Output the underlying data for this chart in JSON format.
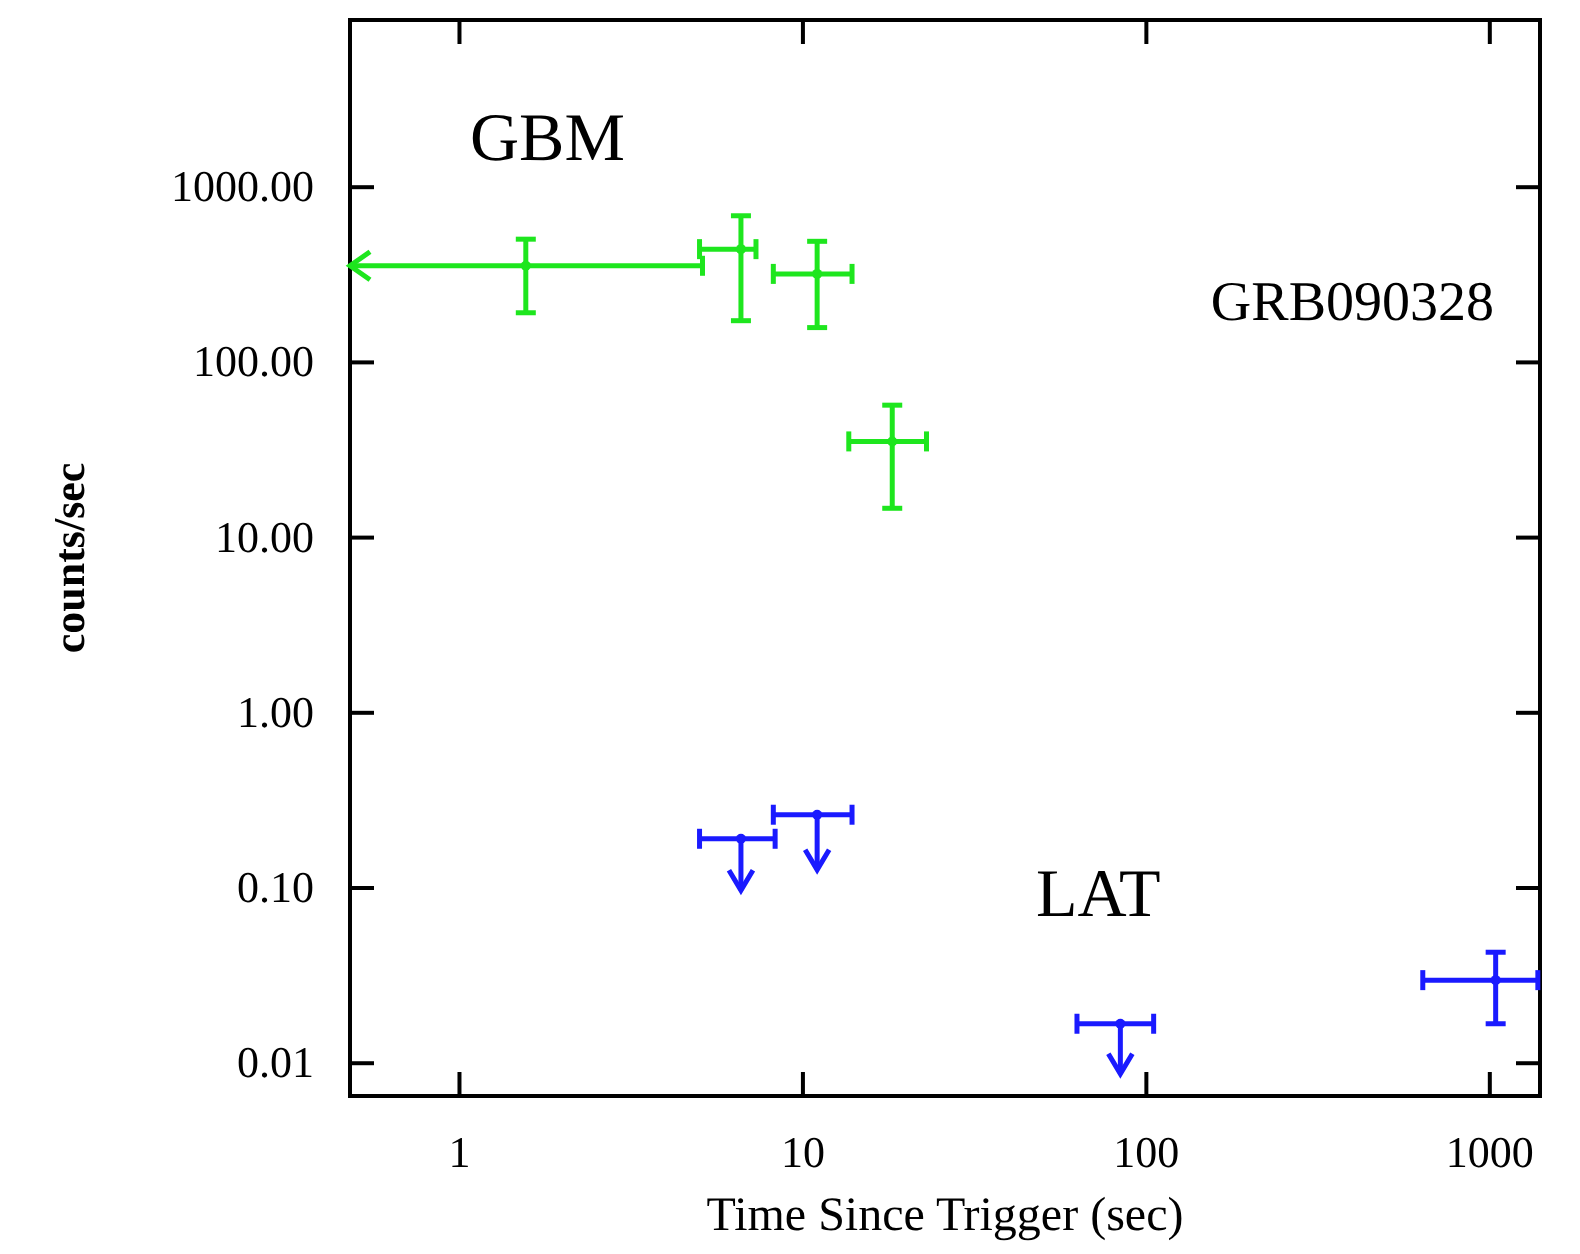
{
  "chart_data": {
    "type": "scatter",
    "xlabel": "Time Since Trigger (sec)",
    "ylabel": "counts/sec",
    "log": "xy",
    "grid": false,
    "marker": "circle",
    "xlim": [
      0.48,
      1400
    ],
    "xticks": [
      1,
      10,
      100,
      1000
    ],
    "ylim": [
      0.0065,
      9000
    ],
    "yticks": [
      {
        "value": 0.01,
        "label": "0.01"
      },
      {
        "value": 0.1,
        "label": "0.10"
      },
      {
        "value": 1,
        "label": "1.00"
      },
      {
        "value": 10,
        "label": "10.00"
      },
      {
        "value": 100,
        "label": "100.00"
      },
      {
        "value": 1000,
        "label": "1000.00"
      }
    ],
    "annotations": [
      "GBM",
      "GRB090328",
      "LAT"
    ],
    "series": [
      {
        "color": "#1ee61e",
        "x": [
          1.56,
          6.6,
          11.0,
          18.2
        ],
        "values": [
          356,
          443,
          320,
          35.4
        ],
        "errors": [
          [
            192,
            505
          ],
          [
            173,
            687
          ],
          [
            158,
            491
          ],
          [
            14.7,
            57
          ]
        ],
        "xerrors": [
          [
            0.48,
            5.1
          ],
          [
            5.0,
            7.3
          ],
          [
            8.2,
            13.9
          ],
          [
            13.6,
            22.9
          ]
        ]
      },
      {
        "color": "#1a1aff",
        "x": [
          6.6,
          11.0,
          84,
          1040
        ],
        "values": [
          0.191,
          0.262,
          0.0168,
          0.0298
        ],
        "errors": [
          [
            0.097,
            0.191
          ],
          [
            0.127,
            0.262
          ],
          [
            0.0087,
            0.0168
          ],
          [
            0.0168,
            0.043
          ]
        ],
        "xerrors": [
          [
            5.0,
            8.3
          ],
          [
            8.2,
            13.9
          ],
          [
            62.8,
            105
          ],
          [
            638,
            1380
          ]
        ]
      }
    ]
  }
}
